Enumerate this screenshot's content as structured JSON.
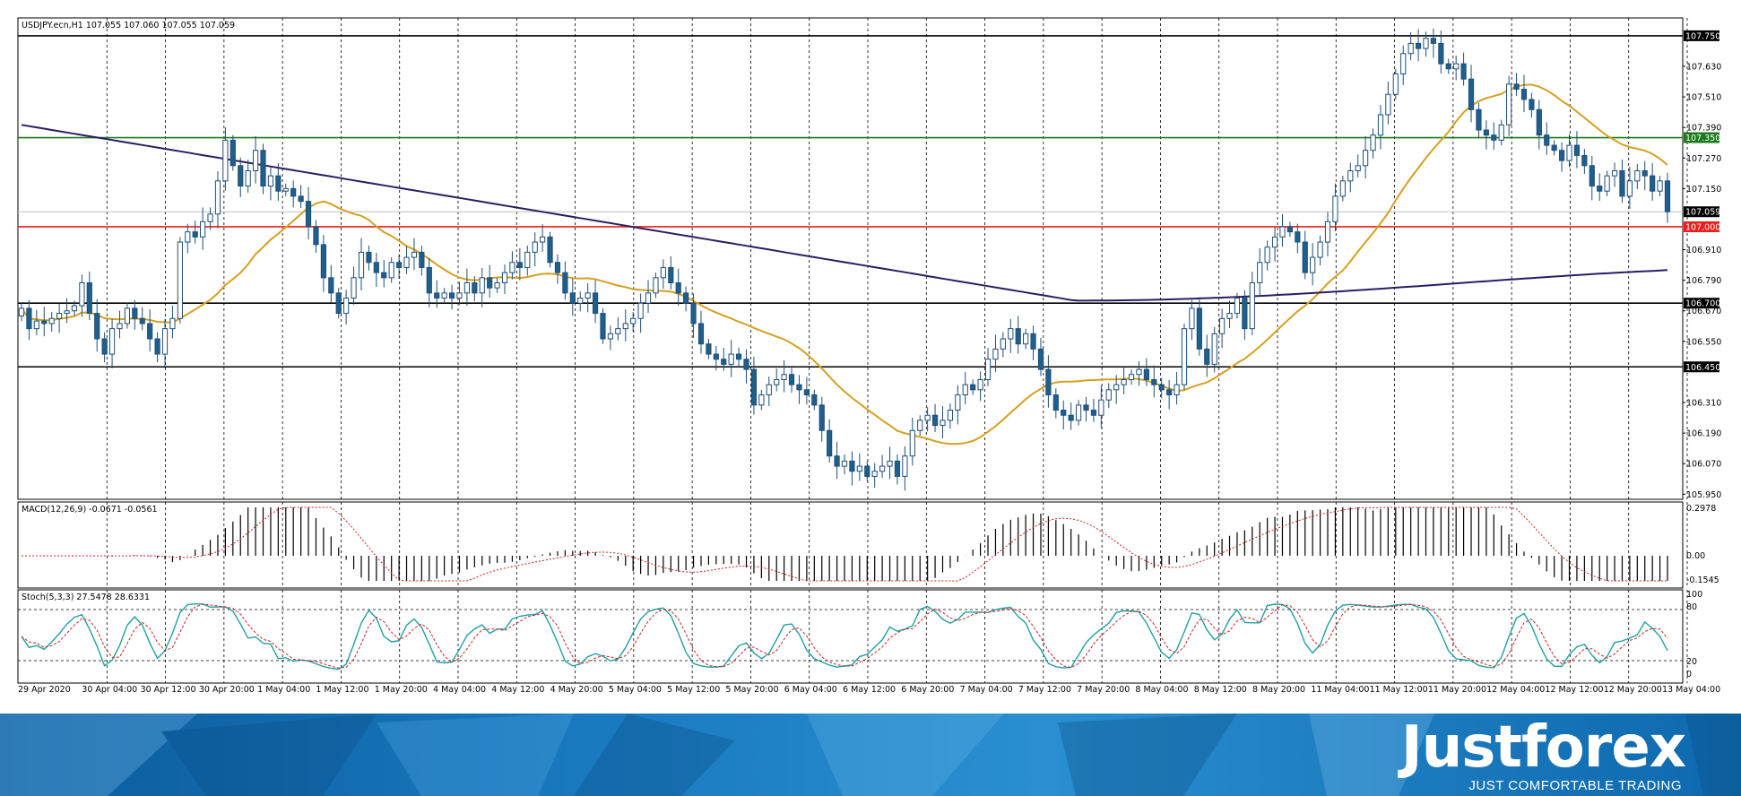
{
  "main_panel": {
    "header": "USDJPY.ecn,H1  107.055 107.060 107.055 107.059"
  },
  "macd_panel": {
    "header": "MACD(12,26,9) -0.0671 -0.0561",
    "ticks": [
      "0.2978",
      "0.00",
      "-0.1545"
    ]
  },
  "stoch_panel": {
    "header": "Stoch(5,3,3) 27.5478 28.6331",
    "ticks": [
      "100",
      "80",
      "20",
      "0"
    ]
  },
  "price_labels": [
    {
      "value": "107.750",
      "color": "#000000"
    },
    {
      "value": "107.350",
      "color": "#1e7a1e"
    },
    {
      "value": "107.059",
      "color": "#000000"
    },
    {
      "value": "107.000",
      "color": "#ee1c1c"
    },
    {
      "value": "106.700",
      "color": "#000000"
    },
    {
      "value": "106.450",
      "color": "#000000"
    }
  ],
  "branding": {
    "name": "Justforex",
    "tagline": "JUST COMFORTABLE TRADING"
  },
  "chart_data": [
    {
      "type": "candlestick",
      "symbol": "USDJPY.ecn",
      "timeframe": "H1",
      "ohlc_last": {
        "open": 107.055,
        "high": 107.06,
        "low": 107.055,
        "close": 107.059
      },
      "ylim": [
        105.93,
        107.82
      ],
      "y_ticks": [
        107.63,
        107.51,
        107.39,
        107.27,
        107.15,
        106.91,
        106.79,
        106.67,
        106.55,
        106.31,
        106.19,
        106.07,
        105.95
      ],
      "x_ticks": [
        "29 Apr 2020",
        "30 Apr 04:00",
        "30 Apr 12:00",
        "30 Apr 20:00",
        "1 May 04:00",
        "1 May 12:00",
        "1 May 20:00",
        "4 May 04:00",
        "4 May 12:00",
        "4 May 20:00",
        "5 May 04:00",
        "5 May 12:00",
        "5 May 20:00",
        "6 May 04:00",
        "6 May 12:00",
        "6 May 20:00",
        "7 May 04:00",
        "7 May 12:00",
        "7 May 20:00",
        "8 May 04:00",
        "8 May 12:00",
        "8 May 20:00",
        "11 May 04:00",
        "11 May 12:00",
        "11 May 20:00",
        "12 May 04:00",
        "12 May 12:00",
        "12 May 20:00",
        "13 May 04:00"
      ],
      "horizontal_levels": [
        {
          "value": 107.75,
          "color": "#000000"
        },
        {
          "value": 107.35,
          "color": "#1e7a1e"
        },
        {
          "value": 107.0,
          "color": "#ee1c1c"
        },
        {
          "value": 106.7,
          "color": "#000000"
        },
        {
          "value": 106.45,
          "color": "#000000"
        }
      ],
      "bid_line": 107.059,
      "close_series": [
        106.68,
        106.6,
        106.63,
        106.62,
        106.64,
        106.66,
        106.67,
        106.69,
        106.78,
        106.66,
        106.56,
        106.5,
        106.6,
        106.62,
        106.68,
        106.64,
        106.62,
        106.56,
        106.5,
        106.6,
        106.64,
        106.94,
        106.98,
        106.96,
        107.02,
        107.05,
        107.18,
        107.34,
        107.24,
        107.16,
        107.22,
        107.3,
        107.16,
        107.2,
        107.14,
        107.15,
        107.12,
        107.1,
        107.0,
        106.93,
        106.8,
        106.74,
        106.66,
        106.72,
        106.8,
        106.9,
        106.86,
        106.82,
        106.8,
        106.86,
        106.84,
        106.88,
        106.9,
        106.84,
        106.74,
        106.72,
        106.74,
        106.72,
        106.74,
        106.78,
        106.74,
        106.8,
        106.76,
        106.78,
        106.82,
        106.86,
        106.84,
        106.9,
        106.94,
        106.96,
        106.86,
        106.82,
        106.74,
        106.7,
        106.72,
        106.74,
        106.66,
        106.56,
        106.58,
        106.6,
        106.62,
        106.64,
        106.7,
        106.74,
        106.8,
        106.84,
        106.78,
        106.74,
        106.7,
        106.62,
        106.54,
        106.5,
        106.48,
        106.46,
        106.5,
        106.48,
        106.44,
        106.3,
        106.34,
        106.38,
        106.4,
        106.42,
        106.38,
        106.36,
        106.34,
        106.3,
        106.2,
        106.1,
        106.06,
        106.08,
        106.04,
        106.06,
        106.02,
        106.04,
        106.06,
        106.08,
        106.02,
        106.1,
        106.2,
        106.24,
        106.26,
        106.22,
        106.24,
        106.28,
        106.34,
        106.38,
        106.36,
        106.4,
        106.48,
        106.52,
        106.56,
        106.6,
        106.54,
        106.58,
        106.52,
        106.44,
        106.34,
        106.28,
        106.26,
        106.24,
        106.3,
        106.28,
        106.26,
        106.32,
        106.36,
        106.38,
        106.4,
        106.42,
        106.44,
        106.4,
        106.38,
        106.36,
        106.34,
        106.38,
        106.6,
        106.68,
        106.52,
        106.46,
        106.58,
        106.64,
        106.66,
        106.72,
        106.6,
        106.78,
        106.86,
        106.92,
        106.96,
        107.0,
        106.98,
        106.94,
        106.82,
        106.88,
        106.94,
        107.02,
        107.12,
        107.18,
        107.22,
        107.24,
        107.3,
        107.36,
        107.44,
        107.52,
        107.6,
        107.68,
        107.72,
        107.7,
        107.74,
        107.72,
        107.64,
        107.62,
        107.64,
        107.58,
        107.46,
        107.38,
        107.36,
        107.34,
        107.4,
        107.56,
        107.54,
        107.5,
        107.46,
        107.36,
        107.32,
        107.3,
        107.26,
        107.32,
        107.28,
        107.24,
        107.16,
        107.14,
        107.2,
        107.22,
        107.12,
        107.18,
        107.22,
        107.2,
        107.14,
        107.18,
        107.059
      ]
    },
    {
      "type": "histogram",
      "name": "MACD(12,26,9)",
      "values": [
        -0.0671,
        -0.0561
      ],
      "y_ticks": [
        0.2978,
        0.0,
        -0.1545
      ]
    },
    {
      "type": "line",
      "name": "Stoch(5,3,3)",
      "values": [
        27.5478,
        28.6331
      ],
      "y_ticks": [
        100,
        80,
        20,
        0
      ]
    }
  ]
}
